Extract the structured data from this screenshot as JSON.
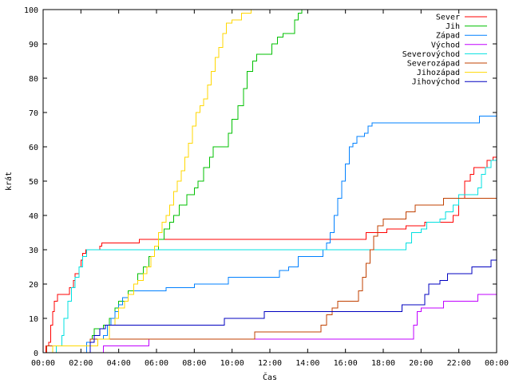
{
  "chart_data": {
    "type": "line",
    "xlabel": "Čas",
    "ylabel": "krát",
    "xlim": [
      0,
      24
    ],
    "ylim": [
      0,
      100
    ],
    "x_tick_labels": [
      "00:00",
      "02:00",
      "04:00",
      "06:00",
      "08:00",
      "10:00",
      "12:00",
      "14:00",
      "16:00",
      "18:00",
      "20:00",
      "22:00",
      "00:00"
    ],
    "y_ticks": [
      0,
      10,
      20,
      30,
      40,
      50,
      60,
      70,
      80,
      90,
      100
    ],
    "grid": false,
    "legend_position": "top-right",
    "series": [
      {
        "name": "Sever",
        "color": "#ff0000",
        "points": [
          [
            0,
            0
          ],
          [
            0.15,
            2
          ],
          [
            0.3,
            3
          ],
          [
            0.4,
            8
          ],
          [
            0.5,
            12
          ],
          [
            0.6,
            15
          ],
          [
            0.75,
            17
          ],
          [
            1.3,
            17
          ],
          [
            1.4,
            19
          ],
          [
            1.6,
            21
          ],
          [
            1.7,
            23
          ],
          [
            1.9,
            25
          ],
          [
            2.0,
            27
          ],
          [
            2.1,
            29
          ],
          [
            2.25,
            30
          ],
          [
            2.9,
            30
          ],
          [
            3.0,
            31
          ],
          [
            3.1,
            32
          ],
          [
            5.0,
            32
          ],
          [
            5.1,
            33
          ],
          [
            17.0,
            33
          ],
          [
            17.1,
            35
          ],
          [
            18.0,
            35
          ],
          [
            18.2,
            36
          ],
          [
            19.0,
            36
          ],
          [
            19.2,
            37
          ],
          [
            20.0,
            37
          ],
          [
            20.2,
            38
          ],
          [
            21.5,
            38
          ],
          [
            21.7,
            40
          ],
          [
            22.0,
            45
          ],
          [
            22.3,
            50
          ],
          [
            22.6,
            52
          ],
          [
            22.8,
            54
          ],
          [
            23.3,
            54
          ],
          [
            23.5,
            56
          ],
          [
            23.8,
            57
          ],
          [
            24,
            58
          ]
        ]
      },
      {
        "name": "Jih",
        "color": "#00c000",
        "points": [
          [
            0,
            0
          ],
          [
            2.4,
            0
          ],
          [
            2.5,
            4
          ],
          [
            2.6,
            5
          ],
          [
            2.7,
            7
          ],
          [
            3.0,
            7
          ],
          [
            3.2,
            8
          ],
          [
            3.5,
            10
          ],
          [
            3.8,
            13
          ],
          [
            4.0,
            15
          ],
          [
            4.5,
            18
          ],
          [
            4.8,
            20
          ],
          [
            5.0,
            23
          ],
          [
            5.3,
            25
          ],
          [
            5.6,
            28
          ],
          [
            5.9,
            30
          ],
          [
            6.1,
            33
          ],
          [
            6.4,
            36
          ],
          [
            6.7,
            38
          ],
          [
            6.9,
            40
          ],
          [
            7.2,
            43
          ],
          [
            7.6,
            46
          ],
          [
            8.0,
            48
          ],
          [
            8.2,
            50
          ],
          [
            8.5,
            54
          ],
          [
            8.8,
            57
          ],
          [
            9.0,
            60
          ],
          [
            9.6,
            60
          ],
          [
            9.8,
            64
          ],
          [
            10.0,
            68
          ],
          [
            10.3,
            72
          ],
          [
            10.6,
            77
          ],
          [
            10.8,
            82
          ],
          [
            11.1,
            85
          ],
          [
            11.3,
            87
          ],
          [
            11.9,
            87
          ],
          [
            12.1,
            90
          ],
          [
            12.4,
            92
          ],
          [
            12.7,
            93
          ],
          [
            13.1,
            93
          ],
          [
            13.3,
            97
          ],
          [
            13.5,
            99
          ],
          [
            13.7,
            100
          ]
        ]
      },
      {
        "name": "Západ",
        "color": "#0080ff",
        "points": [
          [
            0,
            0
          ],
          [
            2.2,
            0
          ],
          [
            2.3,
            3
          ],
          [
            2.5,
            4
          ],
          [
            3.0,
            4
          ],
          [
            3.2,
            5
          ],
          [
            3.4,
            8
          ],
          [
            3.6,
            10
          ],
          [
            3.8,
            12
          ],
          [
            4.0,
            14
          ],
          [
            4.2,
            16
          ],
          [
            4.5,
            17
          ],
          [
            4.8,
            18
          ],
          [
            6.0,
            18
          ],
          [
            6.5,
            19
          ],
          [
            8.0,
            20
          ],
          [
            9.5,
            20
          ],
          [
            9.8,
            22
          ],
          [
            12.0,
            22
          ],
          [
            12.5,
            24
          ],
          [
            13.0,
            25
          ],
          [
            13.5,
            28
          ],
          [
            14.5,
            28
          ],
          [
            14.8,
            30
          ],
          [
            15.0,
            32
          ],
          [
            15.2,
            35
          ],
          [
            15.4,
            40
          ],
          [
            15.6,
            45
          ],
          [
            15.8,
            50
          ],
          [
            16.0,
            55
          ],
          [
            16.2,
            60
          ],
          [
            16.4,
            61
          ],
          [
            16.6,
            63
          ],
          [
            17.0,
            64
          ],
          [
            17.2,
            66
          ],
          [
            17.4,
            67
          ],
          [
            23.0,
            67
          ],
          [
            23.1,
            69
          ],
          [
            24,
            69
          ]
        ]
      },
      {
        "name": "Východ",
        "color": "#c000ff",
        "points": [
          [
            0,
            0
          ],
          [
            3.1,
            0
          ],
          [
            3.2,
            2
          ],
          [
            5.5,
            2
          ],
          [
            5.6,
            4
          ],
          [
            19.4,
            4
          ],
          [
            19.6,
            8
          ],
          [
            19.8,
            12
          ],
          [
            20.0,
            13
          ],
          [
            21.0,
            13
          ],
          [
            21.2,
            15
          ],
          [
            22.8,
            15
          ],
          [
            23.0,
            17
          ],
          [
            24,
            17
          ]
        ]
      },
      {
        "name": "Severovýchod",
        "color": "#00e0e0",
        "points": [
          [
            0,
            0
          ],
          [
            0.5,
            0
          ],
          [
            0.7,
            2
          ],
          [
            1.0,
            5
          ],
          [
            1.1,
            10
          ],
          [
            1.3,
            15
          ],
          [
            1.5,
            19
          ],
          [
            1.7,
            22
          ],
          [
            1.9,
            25
          ],
          [
            2.1,
            28
          ],
          [
            2.3,
            30
          ],
          [
            19.0,
            30
          ],
          [
            19.2,
            32
          ],
          [
            19.5,
            35
          ],
          [
            20.0,
            36
          ],
          [
            20.3,
            38
          ],
          [
            21.0,
            39
          ],
          [
            21.3,
            41
          ],
          [
            21.7,
            43
          ],
          [
            22.0,
            46
          ],
          [
            22.8,
            46
          ],
          [
            23.0,
            48
          ],
          [
            23.2,
            52
          ],
          [
            23.4,
            54
          ],
          [
            23.7,
            56
          ],
          [
            24,
            58
          ]
        ]
      },
      {
        "name": "Severozápad",
        "color": "#c04000",
        "points": [
          [
            0,
            0
          ],
          [
            0.2,
            2
          ],
          [
            2.3,
            2
          ],
          [
            2.5,
            4
          ],
          [
            11.0,
            4
          ],
          [
            11.2,
            6
          ],
          [
            14.5,
            6
          ],
          [
            14.7,
            8
          ],
          [
            15.0,
            11
          ],
          [
            15.3,
            13
          ],
          [
            15.6,
            15
          ],
          [
            16.5,
            15
          ],
          [
            16.7,
            18
          ],
          [
            16.9,
            22
          ],
          [
            17.1,
            26
          ],
          [
            17.3,
            30
          ],
          [
            17.5,
            34
          ],
          [
            17.7,
            37
          ],
          [
            18.0,
            39
          ],
          [
            19.0,
            39
          ],
          [
            19.2,
            41
          ],
          [
            19.5,
            41
          ],
          [
            19.7,
            43
          ],
          [
            21.0,
            43
          ],
          [
            21.2,
            45
          ],
          [
            24,
            45
          ]
        ]
      },
      {
        "name": "Jihozápad",
        "color": "#ffd700",
        "points": [
          [
            0,
            0
          ],
          [
            0.5,
            2
          ],
          [
            2.7,
            2
          ],
          [
            2.9,
            4
          ],
          [
            3.5,
            8
          ],
          [
            3.8,
            10
          ],
          [
            4.0,
            13
          ],
          [
            4.3,
            15
          ],
          [
            4.5,
            17
          ],
          [
            4.8,
            20
          ],
          [
            5.0,
            21
          ],
          [
            5.3,
            23
          ],
          [
            5.5,
            25
          ],
          [
            5.7,
            28
          ],
          [
            5.9,
            31
          ],
          [
            6.1,
            35
          ],
          [
            6.3,
            38
          ],
          [
            6.5,
            40
          ],
          [
            6.7,
            43
          ],
          [
            6.9,
            47
          ],
          [
            7.1,
            50
          ],
          [
            7.3,
            53
          ],
          [
            7.5,
            57
          ],
          [
            7.7,
            61
          ],
          [
            7.9,
            66
          ],
          [
            8.1,
            70
          ],
          [
            8.3,
            72
          ],
          [
            8.5,
            74
          ],
          [
            8.7,
            78
          ],
          [
            8.9,
            82
          ],
          [
            9.1,
            86
          ],
          [
            9.3,
            89
          ],
          [
            9.5,
            93
          ],
          [
            9.7,
            96
          ],
          [
            10.0,
            97
          ],
          [
            10.3,
            97
          ],
          [
            10.5,
            99
          ],
          [
            11.0,
            100
          ]
        ]
      },
      {
        "name": "Jihovýchod",
        "color": "#0000c0",
        "points": [
          [
            0,
            0
          ],
          [
            2.4,
            0
          ],
          [
            2.5,
            3
          ],
          [
            2.7,
            5
          ],
          [
            3.0,
            7
          ],
          [
            3.3,
            8
          ],
          [
            9.4,
            8
          ],
          [
            9.6,
            10
          ],
          [
            11.5,
            10
          ],
          [
            11.7,
            12
          ],
          [
            18.8,
            12
          ],
          [
            19.0,
            14
          ],
          [
            20.0,
            14
          ],
          [
            20.2,
            17
          ],
          [
            20.4,
            20
          ],
          [
            21.0,
            21
          ],
          [
            21.4,
            23
          ],
          [
            22.5,
            23
          ],
          [
            22.7,
            25
          ],
          [
            23.5,
            25
          ],
          [
            23.7,
            27
          ],
          [
            24,
            27
          ]
        ]
      }
    ]
  }
}
